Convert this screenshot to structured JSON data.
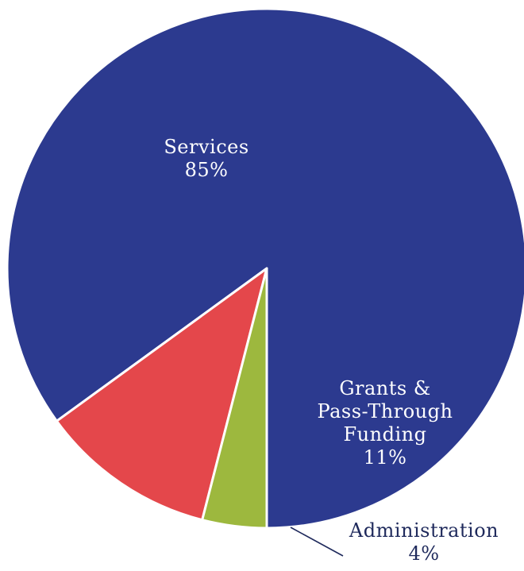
{
  "chart_data": {
    "type": "pie",
    "slices": [
      {
        "name": "Services",
        "label_lines": [
          "Services",
          "85%"
        ],
        "value": 85,
        "color": "#2c3a8f"
      },
      {
        "name": "Grants & Pass-Through Funding",
        "label_lines": [
          "Grants &",
          "Pass-Through",
          "Funding",
          "11%"
        ],
        "value": 11,
        "color": "#e4474b"
      },
      {
        "name": "Administration",
        "label_lines": [
          "Administration",
          "4%"
        ],
        "value": 4,
        "color": "#9db83e"
      }
    ],
    "start": "bottom",
    "direction": "counterclockwise",
    "slice_border_color": "#ffffff",
    "leader_line_color": "#1f2a5c"
  }
}
